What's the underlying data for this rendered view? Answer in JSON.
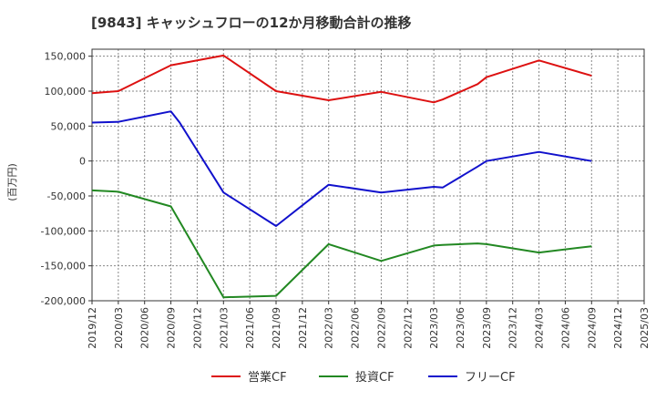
{
  "chart_data": {
    "type": "line",
    "title": "[9843]  キャッシュフローの12か月移動合計の推移",
    "ylabel": "(百万円)",
    "xlabel": "",
    "ylim": [
      -200000,
      160000
    ],
    "yticks": [
      150000,
      100000,
      50000,
      0,
      -50000,
      -100000,
      -150000,
      -200000
    ],
    "ytick_labels": [
      "150,000",
      "100,000",
      "50,000",
      "0",
      "-50,000",
      "-100,000",
      "-150,000",
      "-200,000"
    ],
    "x_categories": [
      "2019/12",
      "2020/03",
      "2020/06",
      "2020/09",
      "2020/12",
      "2021/03",
      "2021/06",
      "2021/09",
      "2021/12",
      "2022/03",
      "2022/06",
      "2022/09",
      "2022/12",
      "2023/03",
      "2023/06",
      "2023/09",
      "2023/12",
      "2024/03",
      "2024/06",
      "2024/09",
      "2024/12",
      "2025/03"
    ],
    "grid": true,
    "legend_position": "bottom",
    "series": [
      {
        "name": "営業CF",
        "color": "#dd1111",
        "x": [
          "2019/12",
          "2020/03",
          "2020/09",
          "2021/03",
          "2021/09",
          "2022/03",
          "2022/09",
          "2023/03",
          "2023/04",
          "2023/08",
          "2023/09",
          "2024/03",
          "2024/09"
        ],
        "values": [
          97000,
          100000,
          137000,
          151000,
          100000,
          87000,
          99000,
          84000,
          88000,
          110000,
          120000,
          144000,
          122000
        ]
      },
      {
        "name": "投資CF",
        "color": "#228822",
        "x": [
          "2019/12",
          "2020/03",
          "2020/09",
          "2021/03",
          "2021/09",
          "2022/03",
          "2022/09",
          "2023/03",
          "2023/04",
          "2023/08",
          "2023/09",
          "2024/03",
          "2024/09"
        ],
        "values": [
          -42000,
          -44000,
          -65000,
          -195000,
          -193000,
          -119000,
          -143000,
          -121000,
          -120000,
          -118000,
          -119000,
          -131000,
          -122000
        ]
      },
      {
        "name": "フリーCF",
        "color": "#1111cc",
        "x": [
          "2019/12",
          "2020/03",
          "2020/09",
          "2020/10",
          "2021/03",
          "2021/09",
          "2022/03",
          "2022/09",
          "2023/03",
          "2023/04",
          "2023/08",
          "2023/09",
          "2024/03",
          "2024/09"
        ],
        "values": [
          55000,
          56000,
          71000,
          55000,
          -45000,
          -93000,
          -34000,
          -45000,
          -37000,
          -38000,
          -8000,
          0,
          13000,
          0
        ]
      }
    ]
  }
}
